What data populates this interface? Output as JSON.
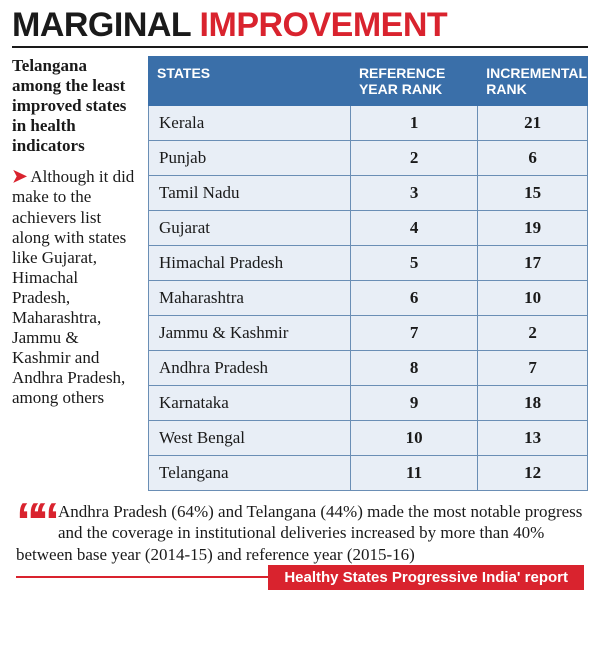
{
  "headline": {
    "word1": "MARGINAL",
    "word2": "IMPROVEMENT"
  },
  "sidebar": {
    "lead": "Telangana among the least improved states in health indicators",
    "body": "Although it did make to the achievers list along with states like Gujarat, Himachal Pradesh, Maharashtra, Jammu & Kashmir and Andhra Pradesh, among others"
  },
  "table": {
    "columns": [
      "STATES",
      "REFERENCE YEAR RANK",
      "INCREMENTAL RANK"
    ],
    "col_widths_pct": [
      46,
      29,
      25
    ],
    "header_bg": "#3a6fa9",
    "header_fg": "#ffffff",
    "cell_bg": "#e8eef6",
    "border_color": "#6a8eb5",
    "rows": [
      [
        "Kerala",
        "1",
        "21"
      ],
      [
        "Punjab",
        "2",
        "6"
      ],
      [
        "Tamil Nadu",
        "3",
        "15"
      ],
      [
        "Gujarat",
        "4",
        "19"
      ],
      [
        "Himachal Pradesh",
        "5",
        "17"
      ],
      [
        "Maharashtra",
        "6",
        "10"
      ],
      [
        "Jammu & Kashmir",
        "7",
        "2"
      ],
      [
        "Andhra Pradesh",
        "8",
        "7"
      ],
      [
        "Karnataka",
        "9",
        "18"
      ],
      [
        "West Bengal",
        "10",
        "13"
      ],
      [
        "Telangana",
        "11",
        "12"
      ]
    ]
  },
  "quote": {
    "text": "Andhra Pradesh (64%) and Telangana (44%) made the most notable progress and the coverage in institutional deliveries increased by more than 40% between base year (2014-15) and reference year (2015-16)",
    "source": "Healthy States Progressive India' report",
    "accent_color": "#d9232e"
  },
  "colors": {
    "black": "#1a1a1a",
    "red": "#d9232e",
    "blue": "#3a6fa9"
  },
  "typography": {
    "headline_fontsize": 34,
    "body_fontsize": 17,
    "th_fontsize": 14
  }
}
